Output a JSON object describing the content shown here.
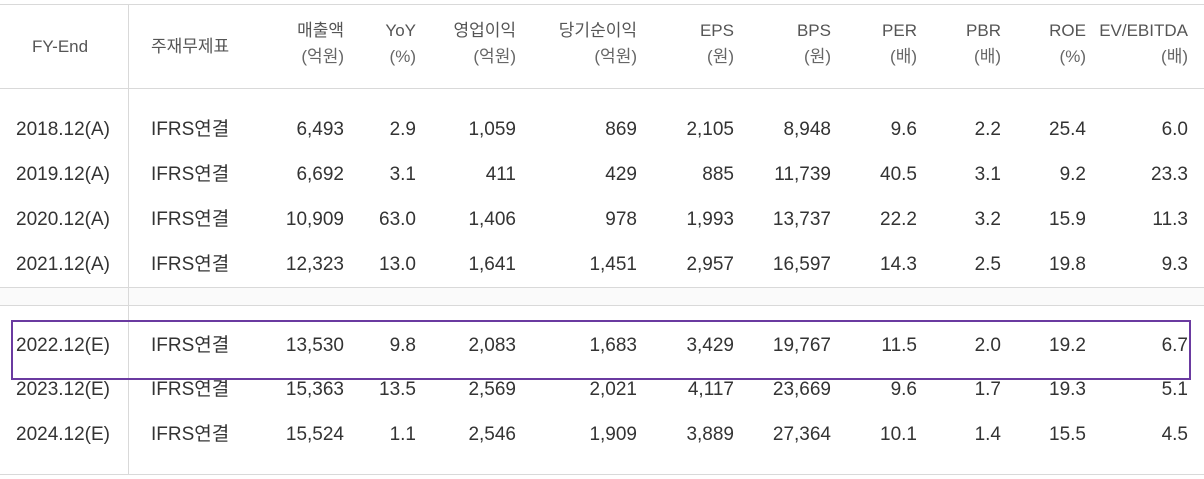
{
  "columns": [
    {
      "line1": "FY-End",
      "line2": ""
    },
    {
      "line1": "주재무제표",
      "line2": ""
    },
    {
      "line1": "매출액",
      "line2": "(억원)"
    },
    {
      "line1": "YoY",
      "line2": "(%)"
    },
    {
      "line1": "영업이익",
      "line2": "(억원)"
    },
    {
      "line1": "당기순이익",
      "line2": "(억원)"
    },
    {
      "line1": "EPS",
      "line2": "(원)"
    },
    {
      "line1": "BPS",
      "line2": "(원)"
    },
    {
      "line1": "PER",
      "line2": "(배)"
    },
    {
      "line1": "PBR",
      "line2": "(배)"
    },
    {
      "line1": "ROE",
      "line2": "(%)"
    },
    {
      "line1": "EV/EBITDA",
      "line2": "(배)"
    }
  ],
  "rows": [
    {
      "fy": "2018.12(A)",
      "basis": "IFRS연결",
      "sales": "6,493",
      "yoy": "2.9",
      "op": "1,059",
      "net": "869",
      "eps": "2,105",
      "bps": "8,948",
      "per": "9.6",
      "pbr": "2.2",
      "roe": "25.4",
      "ev": "6.0"
    },
    {
      "fy": "2019.12(A)",
      "basis": "IFRS연결",
      "sales": "6,692",
      "yoy": "3.1",
      "op": "411",
      "net": "429",
      "eps": "885",
      "bps": "11,739",
      "per": "40.5",
      "pbr": "3.1",
      "roe": "9.2",
      "ev": "23.3"
    },
    {
      "fy": "2020.12(A)",
      "basis": "IFRS연결",
      "sales": "10,909",
      "yoy": "63.0",
      "op": "1,406",
      "net": "978",
      "eps": "1,993",
      "bps": "13,737",
      "per": "22.2",
      "pbr": "3.2",
      "roe": "15.9",
      "ev": "11.3"
    },
    {
      "fy": "2021.12(A)",
      "basis": "IFRS연결",
      "sales": "12,323",
      "yoy": "13.0",
      "op": "1,641",
      "net": "1,451",
      "eps": "2,957",
      "bps": "16,597",
      "per": "14.3",
      "pbr": "2.5",
      "roe": "19.8",
      "ev": "9.3"
    },
    {
      "fy": "2022.12(E)",
      "basis": "IFRS연결",
      "sales": "13,530",
      "yoy": "9.8",
      "op": "2,083",
      "net": "1,683",
      "eps": "3,429",
      "bps": "19,767",
      "per": "11.5",
      "pbr": "2.0",
      "roe": "19.2",
      "ev": "6.7"
    },
    {
      "fy": "2023.12(E)",
      "basis": "IFRS연결",
      "sales": "15,363",
      "yoy": "13.5",
      "op": "2,569",
      "net": "2,021",
      "eps": "4,117",
      "bps": "23,669",
      "per": "9.6",
      "pbr": "1.7",
      "roe": "19.3",
      "ev": "5.1"
    },
    {
      "fy": "2024.12(E)",
      "basis": "IFRS연결",
      "sales": "15,524",
      "yoy": "1.1",
      "op": "2,546",
      "net": "1,909",
      "eps": "3,889",
      "bps": "27,364",
      "per": "10.1",
      "pbr": "1.4",
      "roe": "15.5",
      "ev": "4.5"
    }
  ],
  "highlight": {
    "border_color": "#6a3aa0",
    "rows": [
      "2022.12(E)",
      "2023.12(E)"
    ]
  }
}
